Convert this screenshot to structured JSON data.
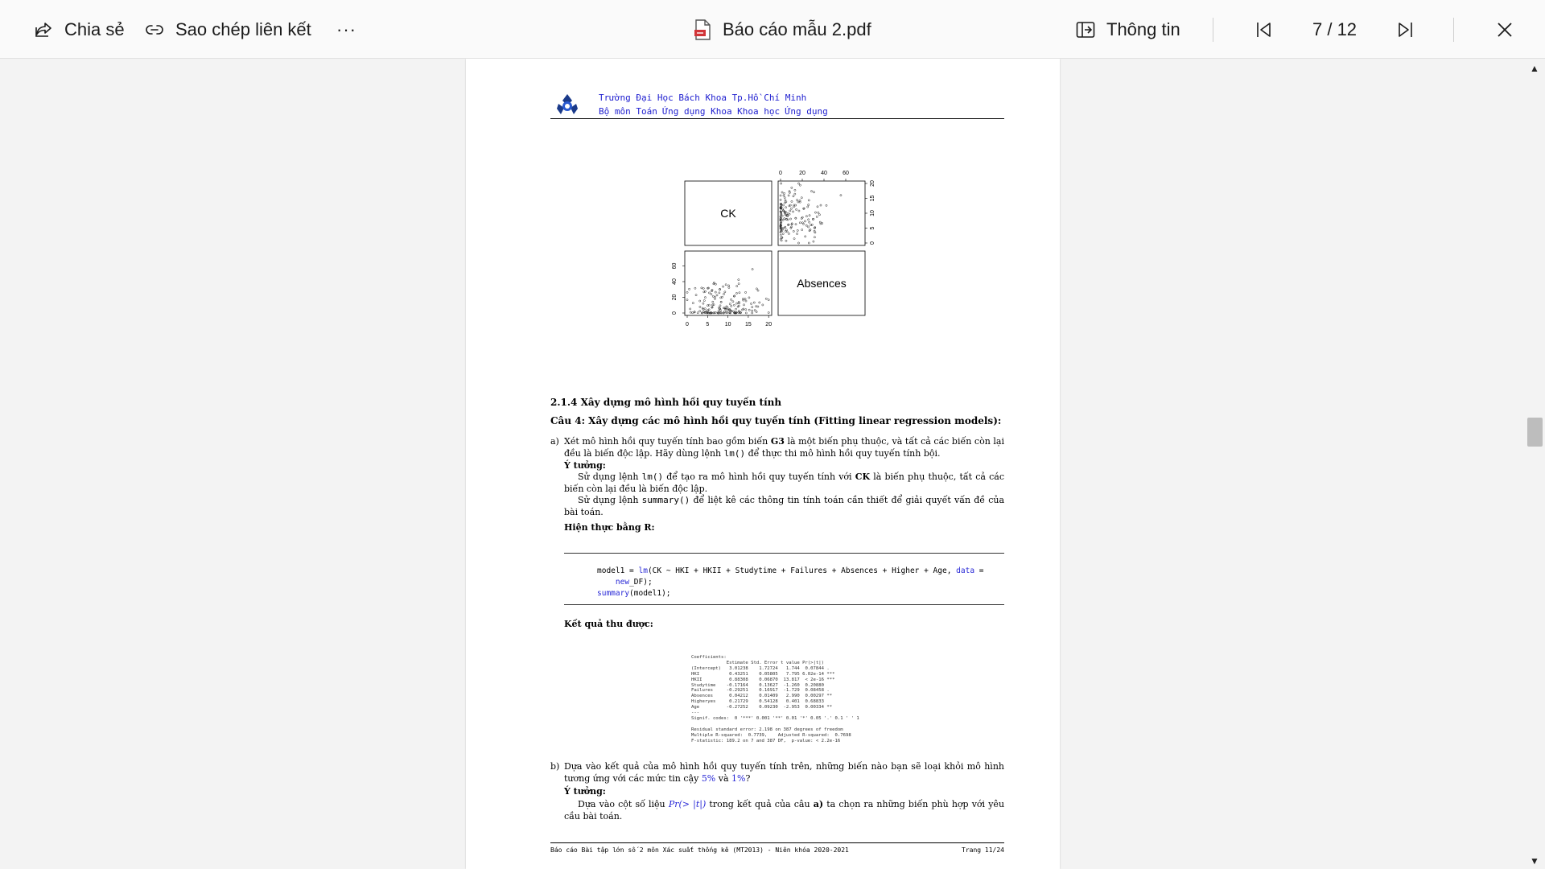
{
  "toolbar": {
    "share_label": "Chia sẻ",
    "copy_link_label": "Sao chép liên kết",
    "more_label": "···",
    "file_name": "Báo cáo mẫu 2.pdf",
    "info_label": "Thông tin",
    "page_indicator": "7 / 12"
  },
  "document": {
    "header_line1": "Trường Đại Học Bách Khoa Tp.Hồ Chí Minh",
    "header_line2": "Bộ môn Toán Ứng dụng Khoa Khoa học Ứng dụng",
    "plot_panels": [
      "CK",
      "Absences"
    ],
    "plot_axis_top": [
      "0",
      "20",
      "40",
      "60"
    ],
    "plot_axis_right": [
      "0",
      "5",
      "10",
      "15",
      "20"
    ],
    "plot_axis_left": [
      "0",
      "20",
      "40",
      "60"
    ],
    "plot_axis_bottom": [
      "0",
      "5",
      "10",
      "15",
      "20"
    ],
    "section_heading": "2.1.4 Xây dựng mô hình hồi quy tuyến tính",
    "question": "Câu 4: Xây dựng các mô hình hồi quy tuyến tính (Fitting linear regression models):",
    "item_a_marker": "a)",
    "item_a_pre": "Xét mô hình hồi quy tuyến tính bao gồm biến",
    "item_a_var": "G3",
    "item_a_mid": "là một biến phụ thuộc, và tất cả các biến còn lại đều là biến độc lập. Hãy dùng lệnh",
    "item_a_code": "lm()",
    "item_a_post": "để thực thi mô hình hồi quy tuyến tính bội.",
    "idea_label": "Ý tưởng:",
    "idea1_pre": "Sử dụng lệnh",
    "idea1_code": "lm()",
    "idea1_mid": "để tạo ra mô hình hồi quy tuyến tính với",
    "idea1_var": "CK",
    "idea1_post": "là biến phụ thuộc, tất cả các biến còn lại đều là biến độc lập.",
    "idea2_pre": "Sử dụng lệnh",
    "idea2_code": "summary()",
    "idea2_post": "để liệt kê các thông tin tính toán cần thiết để giải quyết vấn đề của bài toán.",
    "impl_label": "Hiện thực bằng R:",
    "code_l1_a": "model1 = ",
    "code_l1_fn": "lm",
    "code_l1_b": "(CK ~ HKI + HKII + Studytime + Failures + Absences + Higher + Age, ",
    "code_l1_kw": "data",
    "code_l1_c": " =",
    "code_l2_kw": "new",
    "code_l2_b": "_DF);",
    "code_l3_fn": "summary",
    "code_l3_b": "(model1);",
    "result_label": "Kết quả thu được:",
    "result_text": "Coefficients:\n             Estimate Std. Error t value Pr(>|t|)    \n(Intercept)   3.01238    1.72724   1.744  0.07844 .  \nHKI           0.43251    0.05805   7.795 6.02e-14 ***\nHKII          0.88308    0.06870  13.817  < 2e-16 ***\nStudytime    -0.17164    0.13627  -1.260  0.20880    \nFailures     -0.29251    0.16917  -1.729  0.08458 .  \nAbsences      0.04212    0.01409   2.990  0.00297 ** \nHigheryes     0.21729    0.54128   0.401  0.68833    \nAge          -0.27252    0.09230  -2.953  0.00334 ** \n---\nSignif. codes:  0 '***' 0.001 '**' 0.01 '*' 0.05 '.' 0.1 ' ' 1\n\nResidual standard error: 2.198 on 387 degrees of freedom\nMultiple R-squared:  0.7739,\tAdjusted R-squared:  0.7698 \nF-statistic: 189.2 on 7 and 387 DF,  p-value: < 2.2e-16",
    "item_b_marker": "b)",
    "item_b_pre": "Dựa vào kết quả của mô hình hồi quy tuyến tính trên, những biến nào bạn sẽ loại khỏi mô hình tương ứng với các mức tin cậy",
    "item_b_p5": "5%",
    "item_b_and": "và",
    "item_b_p1": "1%",
    "item_b_q": "?",
    "idea_b_pre": "Dựa vào cột số liệu",
    "idea_b_math": "Pr(> |t|)",
    "idea_b_mid": "trong kết quả của câu",
    "idea_b_ref": "a)",
    "idea_b_post": "ta chọn ra những biến phù hợp với yêu cầu bài toán.",
    "footer_left": "Báo cáo Bài tập lớn số 2 môn Xác suất thống kê (MT2013) - Niên khóa 2020-2021",
    "footer_right": "Trang 11/24"
  }
}
